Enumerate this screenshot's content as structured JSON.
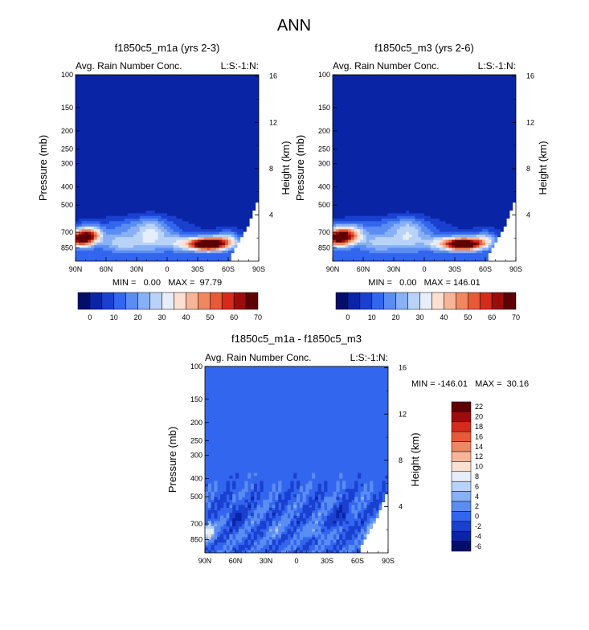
{
  "figure": {
    "title": "ANN"
  },
  "colors": {
    "bg": "#0a38c0",
    "diffbg": "#3366ee",
    "scale13": [
      "#030e6b",
      "#0a24a6",
      "#1a40d0",
      "#3366ee",
      "#5a8cf2",
      "#87b0f5",
      "#b9d3f8",
      "#e6eefa",
      "#fbe0d2",
      "#f6b598",
      "#ef8760",
      "#e75a38",
      "#d42b1c",
      "#9c0c0a",
      "#5e0004"
    ],
    "scaleDiff": [
      "#030e6b",
      "#0a24a6",
      "#1a40d0",
      "#3366ee",
      "#5a8cf2",
      "#87b0f5",
      "#b9d3f8",
      "#e6eefa",
      "#fbe0d2",
      "#f6b598",
      "#ef8760",
      "#e75a38",
      "#d42b1c",
      "#9c0c0a",
      "#5e0004"
    ]
  },
  "chart_data": [
    {
      "type": "heatmap",
      "id": "p1",
      "title": "f1850c5_m1a (yrs 2-3)",
      "left_label": "Avg. Rain Number Conc.",
      "right_label": "L:S:-1:N:",
      "ylabel": "Pressure (mb)",
      "ylabel_right": "Height (km)",
      "xticks": [
        "90N",
        "60N",
        "30N",
        "0",
        "30S",
        "60S",
        "90S"
      ],
      "yticks": [
        "100",
        "150",
        "200",
        "250",
        "300",
        "400",
        "500",
        "700",
        "850"
      ],
      "yticks_right": [
        "16",
        "12",
        "8",
        "4"
      ],
      "xlim": [
        -90,
        90
      ],
      "ylim": [
        100,
        1000
      ],
      "stats": "MIN =   0.00   MAX =  97.79",
      "blobs": [
        {
          "lat": -85,
          "p": 760,
          "sx": 9,
          "sp": 55,
          "v": 60
        },
        {
          "lat": -75,
          "p": 720,
          "sx": 8,
          "sp": 50,
          "v": 35
        },
        {
          "lat": -45,
          "p": 790,
          "sx": 14,
          "sp": 70,
          "v": 22
        },
        {
          "lat": -15,
          "p": 740,
          "sx": 12,
          "sp": 95,
          "v": 24
        },
        {
          "lat": 10,
          "p": 790,
          "sx": 10,
          "sp": 60,
          "v": 16
        },
        {
          "lat": 40,
          "p": 810,
          "sx": 14,
          "sp": 45,
          "v": 82
        },
        {
          "lat": 60,
          "p": 760,
          "sx": 8,
          "sp": 50,
          "v": 20
        },
        {
          "lat": -30,
          "p": 640,
          "sx": 30,
          "sp": 50,
          "v": 10
        }
      ]
    },
    {
      "type": "heatmap",
      "id": "p2",
      "title": "f1850c5_m3 (yrs 2-6)",
      "left_label": "Avg. Rain Number Conc.",
      "right_label": "L:S:-1:N:",
      "ylabel": "Pressure (mb)",
      "ylabel_right": "Height (km)",
      "xticks": [
        "90N",
        "60N",
        "30N",
        "0",
        "30S",
        "60S",
        "90S"
      ],
      "yticks": [
        "100",
        "150",
        "200",
        "250",
        "300",
        "400",
        "500",
        "700",
        "850"
      ],
      "yticks_right": [
        "16",
        "12",
        "8",
        "4"
      ],
      "xlim": [
        -90,
        90
      ],
      "ylim": [
        100,
        1000
      ],
      "stats": "MIN =   0.00   MAX = 146.01",
      "blobs": [
        {
          "lat": -85,
          "p": 750,
          "sx": 9,
          "sp": 60,
          "v": 62
        },
        {
          "lat": -72,
          "p": 720,
          "sx": 9,
          "sp": 55,
          "v": 32
        },
        {
          "lat": -45,
          "p": 790,
          "sx": 14,
          "sp": 70,
          "v": 20
        },
        {
          "lat": -15,
          "p": 740,
          "sx": 12,
          "sp": 95,
          "v": 22
        },
        {
          "lat": 10,
          "p": 790,
          "sx": 10,
          "sp": 60,
          "v": 14
        },
        {
          "lat": 38,
          "p": 810,
          "sx": 14,
          "sp": 45,
          "v": 80
        },
        {
          "lat": 60,
          "p": 760,
          "sx": 8,
          "sp": 50,
          "v": 18
        },
        {
          "lat": -30,
          "p": 640,
          "sx": 30,
          "sp": 50,
          "v": 10
        }
      ]
    },
    {
      "type": "heatmap",
      "id": "p3",
      "title": "f1850c5_m1a - f1850c5_m3",
      "left_label": "Avg. Rain Number Conc.",
      "right_label": "L:S:-1:N:",
      "ylabel": "Pressure (mb)",
      "ylabel_right": "Height (km)",
      "xticks": [
        "90N",
        "60N",
        "30N",
        "0",
        "30S",
        "60S",
        "90S"
      ],
      "yticks": [
        "100",
        "150",
        "200",
        "250",
        "300",
        "400",
        "500",
        "700",
        "850"
      ],
      "yticks_right": [
        "16",
        "12",
        "8",
        "4"
      ],
      "xlim": [
        -90,
        90
      ],
      "ylim": [
        100,
        1000
      ],
      "stats": "MIN = -146.01   MAX =  30.16",
      "blobs": [
        {
          "lat": -86,
          "p": 770,
          "sx": 4,
          "sp": 60,
          "v": 8
        },
        {
          "lat": 78,
          "p": 780,
          "sx": 5,
          "sp": 70,
          "v": 6
        },
        {
          "lat": 20,
          "p": 780,
          "sx": 6,
          "sp": 40,
          "v": 3
        },
        {
          "lat": -20,
          "p": 760,
          "sx": 6,
          "sp": 40,
          "v": 2
        },
        {
          "lat": 45,
          "p": 650,
          "sx": 6,
          "sp": 60,
          "v": -3
        },
        {
          "lat": -60,
          "p": 620,
          "sx": 6,
          "sp": 60,
          "v": -3
        }
      ]
    }
  ],
  "colorbars": {
    "top": {
      "labels": [
        "0",
        "10",
        "20",
        "30",
        "40",
        "50",
        "60",
        "70"
      ]
    },
    "diff": {
      "labels": [
        "22",
        "20",
        "18",
        "16",
        "14",
        "12",
        "10",
        "8",
        "6",
        "4",
        "2",
        "0",
        "-2",
        "-4",
        "-6"
      ]
    }
  }
}
